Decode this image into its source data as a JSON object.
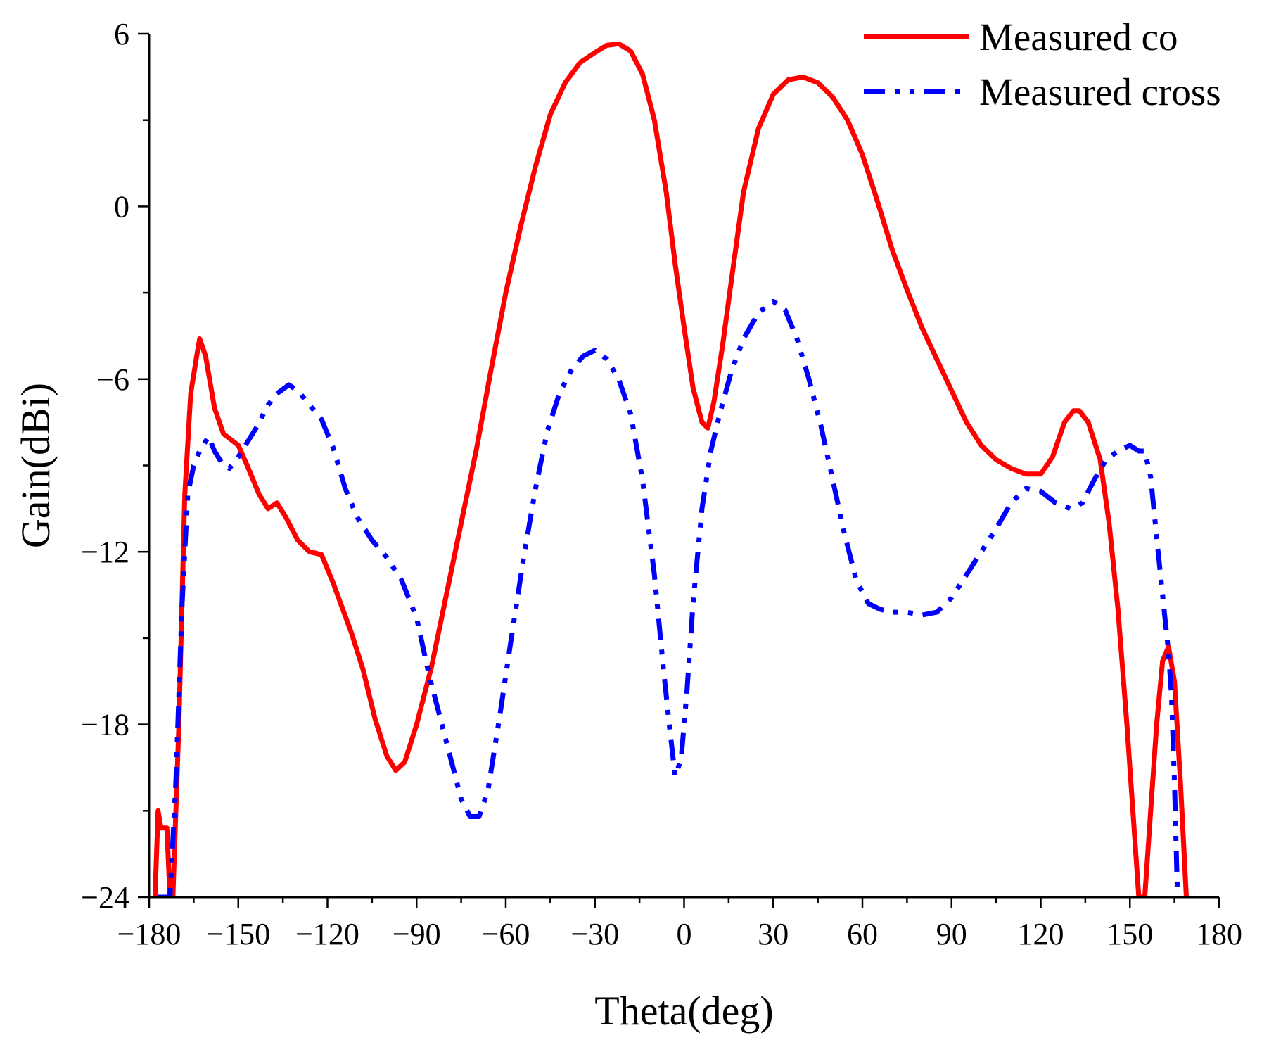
{
  "chart_data": {
    "type": "line",
    "title": "",
    "xlabel": "Theta(deg)",
    "ylabel": "Gain(dBi)",
    "xlim": [
      -180,
      180
    ],
    "ylim": [
      -24,
      6
    ],
    "x_ticks": [
      -180,
      -150,
      -120,
      -90,
      -60,
      -30,
      0,
      30,
      60,
      90,
      120,
      150,
      180
    ],
    "x_tick_labels": [
      "-180",
      "-150",
      "-120",
      "-90",
      "-60",
      "-30",
      "0",
      "30",
      "60",
      "90",
      "120",
      "150",
      "180"
    ],
    "y_ticks": [
      -24,
      -18,
      -12,
      -6,
      0,
      6
    ],
    "y_tick_labels": [
      "-24",
      "-18",
      "-12",
      "-6",
      "0",
      "6"
    ],
    "legend_position": "top-right",
    "series": [
      {
        "name": "Measured co",
        "color": "#ff0000",
        "style": "solid",
        "points": [
          [
            -178,
            -24
          ],
          [
            -177,
            -21
          ],
          [
            -176,
            -21.6
          ],
          [
            -174,
            -21.6
          ],
          [
            -173,
            -24
          ],
          [
            -172,
            -24
          ],
          [
            -170,
            -18
          ],
          [
            -168,
            -10
          ],
          [
            -166,
            -6.5
          ],
          [
            -164,
            -5.2
          ],
          [
            -163,
            -4.6
          ],
          [
            -161,
            -5.2
          ],
          [
            -158,
            -7
          ],
          [
            -155,
            -7.9
          ],
          [
            -150,
            -8.3
          ],
          [
            -147,
            -9
          ],
          [
            -143,
            -10
          ],
          [
            -140,
            -10.5
          ],
          [
            -137,
            -10.3
          ],
          [
            -134,
            -10.8
          ],
          [
            -130,
            -11.6
          ],
          [
            -126,
            -12
          ],
          [
            -122,
            -12.1
          ],
          [
            -118,
            -13.1
          ],
          [
            -112,
            -14.8
          ],
          [
            -108,
            -16.1
          ],
          [
            -104,
            -17.8
          ],
          [
            -100,
            -19.1
          ],
          [
            -97,
            -19.6
          ],
          [
            -94,
            -19.3
          ],
          [
            -90,
            -18
          ],
          [
            -85,
            -16
          ],
          [
            -80,
            -13.5
          ],
          [
            -75,
            -11
          ],
          [
            -70,
            -8.5
          ],
          [
            -65,
            -5.7
          ],
          [
            -60,
            -3
          ],
          [
            -55,
            -0.7
          ],
          [
            -50,
            1.4
          ],
          [
            -45,
            3.2
          ],
          [
            -40,
            4.3
          ],
          [
            -35,
            5
          ],
          [
            -30,
            5.35
          ],
          [
            -26,
            5.6
          ],
          [
            -22,
            5.65
          ],
          [
            -18,
            5.4
          ],
          [
            -14,
            4.6
          ],
          [
            -10,
            3
          ],
          [
            -6,
            0.5
          ],
          [
            -3,
            -2
          ],
          [
            0,
            -4.2
          ],
          [
            3,
            -6.3
          ],
          [
            6,
            -7.5
          ],
          [
            8,
            -7.7
          ],
          [
            10,
            -6.8
          ],
          [
            13,
            -4.8
          ],
          [
            16,
            -2.5
          ],
          [
            20,
            0.5
          ],
          [
            25,
            2.7
          ],
          [
            30,
            3.9
          ],
          [
            35,
            4.4
          ],
          [
            40,
            4.5
          ],
          [
            45,
            4.3
          ],
          [
            50,
            3.8
          ],
          [
            55,
            3
          ],
          [
            60,
            1.8
          ],
          [
            65,
            0.2
          ],
          [
            70,
            -1.5
          ],
          [
            75,
            -2.9
          ],
          [
            80,
            -4.2
          ],
          [
            85,
            -5.3
          ],
          [
            90,
            -6.4
          ],
          [
            95,
            -7.5
          ],
          [
            100,
            -8.3
          ],
          [
            105,
            -8.8
          ],
          [
            110,
            -9.1
          ],
          [
            115,
            -9.3
          ],
          [
            120,
            -9.3
          ],
          [
            124,
            -8.7
          ],
          [
            128,
            -7.5
          ],
          [
            131,
            -7.1
          ],
          [
            133,
            -7.1
          ],
          [
            136,
            -7.5
          ],
          [
            140,
            -8.8
          ],
          [
            143,
            -11
          ],
          [
            146,
            -14
          ],
          [
            149,
            -18
          ],
          [
            151,
            -21
          ],
          [
            153,
            -24
          ],
          [
            155,
            -24
          ],
          [
            157,
            -21
          ],
          [
            159,
            -18
          ],
          [
            161,
            -15.8
          ],
          [
            163,
            -15.3
          ],
          [
            165,
            -16.5
          ],
          [
            167,
            -20
          ],
          [
            169,
            -24
          ]
        ]
      },
      {
        "name": "Measured cross",
        "color": "#0000ff",
        "style": "dash-dot-dot",
        "points": [
          [
            -177,
            -24
          ],
          [
            -175,
            -24
          ],
          [
            -173,
            -24
          ],
          [
            -171,
            -20
          ],
          [
            -169,
            -14
          ],
          [
            -167,
            -10
          ],
          [
            -165,
            -9
          ],
          [
            -163,
            -8.5
          ],
          [
            -160,
            -8
          ],
          [
            -158,
            -8.5
          ],
          [
            -155,
            -9
          ],
          [
            -153,
            -9.1
          ],
          [
            -150,
            -8.7
          ],
          [
            -147,
            -8.2
          ],
          [
            -144,
            -7.7
          ],
          [
            -140,
            -6.9
          ],
          [
            -137,
            -6.5
          ],
          [
            -133,
            -6.2
          ],
          [
            -130,
            -6.4
          ],
          [
            -126,
            -6.9
          ],
          [
            -122,
            -7.4
          ],
          [
            -118,
            -8.4
          ],
          [
            -114,
            -9.8
          ],
          [
            -110,
            -10.8
          ],
          [
            -105,
            -11.6
          ],
          [
            -100,
            -12.2
          ],
          [
            -95,
            -13
          ],
          [
            -90,
            -14.3
          ],
          [
            -86,
            -16.2
          ],
          [
            -82,
            -17.8
          ],
          [
            -78,
            -19.4
          ],
          [
            -75,
            -20.6
          ],
          [
            -72,
            -21.2
          ],
          [
            -69,
            -21.2
          ],
          [
            -66,
            -20.3
          ],
          [
            -62,
            -17.7
          ],
          [
            -58,
            -14.9
          ],
          [
            -54,
            -12.2
          ],
          [
            -50,
            -9.8
          ],
          [
            -46,
            -7.8
          ],
          [
            -42,
            -6.5
          ],
          [
            -38,
            -5.7
          ],
          [
            -34,
            -5.2
          ],
          [
            -30,
            -5
          ],
          [
            -26,
            -5.3
          ],
          [
            -22,
            -6
          ],
          [
            -18,
            -7.2
          ],
          [
            -14,
            -9.5
          ],
          [
            -10,
            -12.8
          ],
          [
            -7,
            -16
          ],
          [
            -5,
            -18
          ],
          [
            -3,
            -19.8
          ],
          [
            -1,
            -19.2
          ],
          [
            1,
            -16.8
          ],
          [
            3,
            -13.8
          ],
          [
            6,
            -10.5
          ],
          [
            9,
            -8.5
          ],
          [
            12,
            -7.2
          ],
          [
            16,
            -5.7
          ],
          [
            20,
            -4.6
          ],
          [
            25,
            -3.7
          ],
          [
            30,
            -3.3
          ],
          [
            34,
            -3.6
          ],
          [
            38,
            -4.6
          ],
          [
            42,
            -6
          ],
          [
            46,
            -7.6
          ],
          [
            50,
            -9.5
          ],
          [
            54,
            -11.4
          ],
          [
            58,
            -13
          ],
          [
            62,
            -13.8
          ],
          [
            66,
            -14
          ],
          [
            70,
            -14.1
          ],
          [
            75,
            -14.1
          ],
          [
            80,
            -14.2
          ],
          [
            85,
            -14.1
          ],
          [
            90,
            -13.6
          ],
          [
            95,
            -12.8
          ],
          [
            100,
            -12
          ],
          [
            105,
            -11.2
          ],
          [
            110,
            -10.3
          ],
          [
            115,
            -9.8
          ],
          [
            120,
            -9.9
          ],
          [
            125,
            -10.3
          ],
          [
            130,
            -10.5
          ],
          [
            134,
            -10.3
          ],
          [
            138,
            -9.5
          ],
          [
            142,
            -8.8
          ],
          [
            146,
            -8.5
          ],
          [
            150,
            -8.3
          ],
          [
            153,
            -8.5
          ],
          [
            155,
            -8.5
          ],
          [
            157,
            -9.4
          ],
          [
            159,
            -11.5
          ],
          [
            161,
            -13.5
          ],
          [
            163,
            -15.5
          ],
          [
            164,
            -17
          ],
          [
            165,
            -20
          ],
          [
            166,
            -24
          ]
        ]
      }
    ]
  }
}
